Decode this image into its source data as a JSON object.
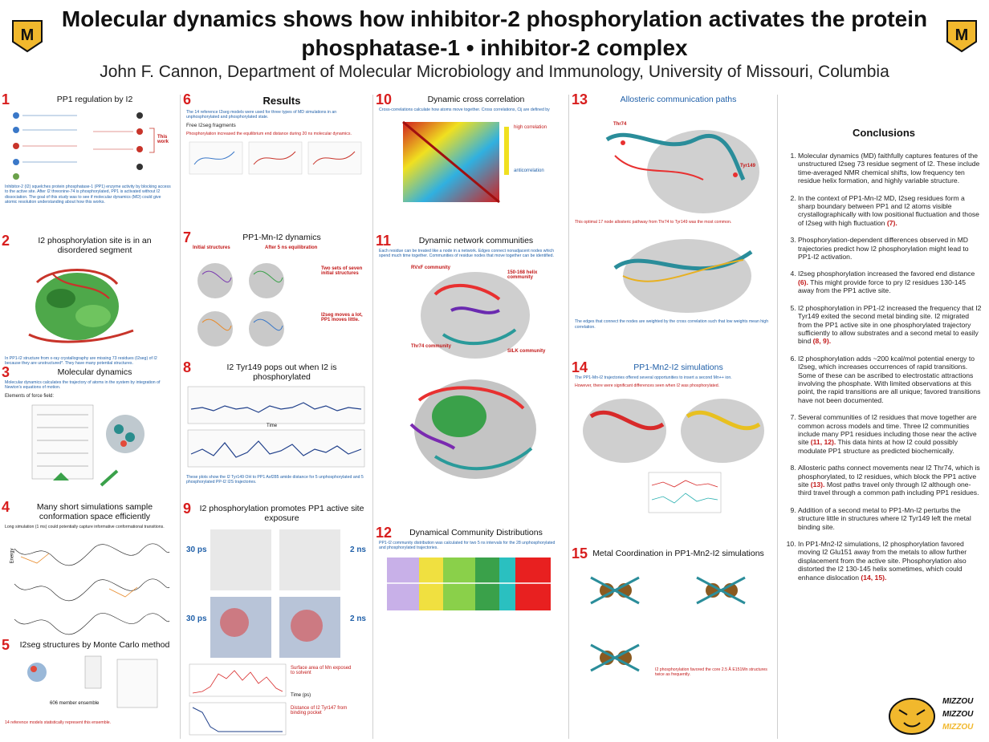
{
  "header": {
    "title": "Molecular dynamics shows how inhibitor-2 phosphorylation activates the protein phosphatase-1 • inhibitor-2 complex",
    "authors": "John F. Cannon, Department of Molecular Microbiology and Immunology, University of Missouri, Columbia"
  },
  "sections": [
    {
      "num": "1",
      "title": "PP1 regulation by I2",
      "text": "Inhibitor-2 (I2) squelches protein phosphatase-1 (PP1) enzyme activity by blocking access to the active site. After I2 threonine-74 is phosphorylated, PP1 is activated without I2 dissociation. The goal of this study was to see if molecular dynamics (MD) could give atomic resolution understanding about how this works.",
      "label": "This work"
    },
    {
      "num": "2",
      "title": "I2 phosphorylation site is in an disordered segment",
      "text": "In PP1-I2 structure from x-ray crystallography are missing 73 residues (I2seg) of I2 because they are unstructured*. They have many potential structures."
    },
    {
      "num": "3",
      "title": "Molecular dynamics",
      "text": "Molecular dynamics calculates the trajectory of atoms in the system by integration of Newton's equations of motion.",
      "sub": "Elements of force field:"
    },
    {
      "num": "4",
      "title": "Many short simulations sample conformation space efficiently",
      "text": "Long simulation (1 ms) could potentially capture informative conformational transitions.",
      "ylabel": "Energy"
    },
    {
      "num": "5",
      "title": "I2seg structures by Monte Carlo method",
      "text": "606 member ensemble",
      "red": "14 reference models statistically represent this ensemble."
    },
    {
      "num": "6",
      "title": "Results",
      "text": "The 14 reference I2seg models were used for three types of MD simulations in an unphosphorylated and phosphorylated state.",
      "sub": "Free I2seg fragments",
      "red": "Phosphorylation increased the equilibrium end distance during 20 ns molecular dynamics."
    },
    {
      "num": "7",
      "title": "PP1-Mn-I2 dynamics",
      "l1": "Initial structures",
      "l2": "After 5 ns equilibration",
      "l3": "Two sets of seven initial structures",
      "l4": "I2seg moves a lot, PP1 moves little."
    },
    {
      "num": "8",
      "title": "I2 Tyr149 pops out when I2 is phosphorylated",
      "text": "These plots show the I2 Tyr149 OH to PP1 Asf285 amide distance for 5 unphosphorylated and 5 phosphorylated PP-I2 I2S trajectories.",
      "xlabel": "Time"
    },
    {
      "num": "9",
      "title": "I2 phosphorylation promotes PP1 active site exposure",
      "t1": "30 ps",
      "t2": "2 ns",
      "a1": "Surface area of Mn exposed to solvent",
      "a2": "Distance of I2 Tyr147 from binding pocket",
      "x": "Time (ps)"
    },
    {
      "num": "10",
      "title": "Dynamic cross correlation",
      "text": "Cross-correlations calculate how atoms move together. Cross correlations, Cij are defined by",
      "legend_hi": "high correlation",
      "legend_lo": "anticorrelation"
    },
    {
      "num": "11",
      "title": "Dynamic network communities",
      "text": "Each residue can be treated like a node in a network. Edges connect nonadjacent nodes which spend much time together. Communities of residue nodes that move together can be identified.",
      "c1": "RVxF community",
      "c2": "150-168 helix community",
      "c3": "SILK community",
      "c4": "Thr74 community"
    },
    {
      "num": "12",
      "title": "Dynamical Community Distributions",
      "text": "PP1-I2 community distribution was calculated for two 5 ns intervals for the 28 unphosphorylated and phosphorylated trajectories."
    },
    {
      "num": "13",
      "title": "Allosteric communication paths",
      "text": "The edges that connect the nodes are weighted by the cross correlation such that low weights mean high correlation.",
      "r1": "Thr74",
      "r2": "Tyr149",
      "red": "This optimal 17 node allosteric pathway from Thr74 to Tyr149 was the most common."
    },
    {
      "num": "14",
      "title": "PP1-Mn2-I2 simulations",
      "text": "The PP1-Mn-I2 trajectories offered several opportunities to insert a second Mn++ ion.",
      "red": "However, there were significant differences seen when I2 was phosphorylated."
    },
    {
      "num": "15",
      "title": "Metal Coordination in PP1-Mn2-I2 simulations",
      "red": "I2 phosphorylation favored the core 2.5 Å E151Mn structures twice as frequently."
    }
  ],
  "conclusions": {
    "title": "Conclusions",
    "items": [
      {
        "text": "Molecular dynamics (MD) faithfully captures  features of the unstructured I2seg 73 residue segment of I2. These include time-averaged NMR chemical shifts, low frequency ten residue helix formation, and highly variable structure.",
        "ref": ""
      },
      {
        "text": "In the context of PP1-Mn-I2 MD, I2seg residues form a sharp boundary between PP1 and I2 atoms visible crystallographically with low positional fluctuation and those of I2seg with high fluctuation",
        "ref": "(7)."
      },
      {
        "text": "Phosphorylation-dependent differences observed in MD trajectories predict how I2 phosphorylation might lead to PP1-I2 activation.",
        "ref": ""
      },
      {
        "text": "I2seg phosphorylation increased the favored end distance",
        "ref": "(6).",
        "after": " This might provide force to pry I2 residues 130-145 away from the PP1 active site."
      },
      {
        "text": "I2 phosphorylation in PP1-I2 increased the frequency that I2 Tyr149 exited the second metal binding site. I2 migrated from the PP1 active site in one phosphorylated trajectory sufficiently to allow substrates and a second metal to easily bind",
        "ref": "(8, 9)."
      },
      {
        "text": "I2 phosphorylation adds ~200 kcal/mol potential energy to I2seg, which increases occurrences of rapid transitions. Some of these can be ascribed to electrostatic attractions involving the phosphate. With limited observations at this point, the rapid transitions are all unique; favored transitions have not been documented.",
        "ref": ""
      },
      {
        "text": "Several communities of I2 residues that move together are common across models and time. Three I2 communities include many PP1 residues including those near the active site",
        "ref": "(11, 12).",
        "after": " This data hints at how I2 could possibly modulate PP1 structure as predicted biochemically."
      },
      {
        "text": "Allosteric paths connect movements near I2 Thr74, which is phosphorylated, to I2 residues, which block the PP1 active site",
        "ref": "(13).",
        "after": " Most paths travel only through I2 although one-third travel through a common path including PP1 residues."
      },
      {
        "text": "Addition of a second metal to PP1-Mn-I2 perturbs the structure little in structures where I2 Tyr149 left the metal binding site.",
        "ref": ""
      },
      {
        "text": "In PP1-Mn2-I2 simulations, I2 phosphorylation favored moving I2 Glu151 away from the metals to allow further displacement from the active site. Phosphorylation also distorted the I2 130-145 helix sometimes, which could enhance dislocation",
        "ref": "(14, 15)."
      }
    ]
  },
  "footer": {
    "logo_words": [
      "MIZZOU",
      "MIZZOU",
      "MIZZOU"
    ]
  },
  "colors": {
    "accent_red": "#d81e1e",
    "text_blue": "#1f5fa8",
    "mizzou_gold": "#f1b82d"
  }
}
